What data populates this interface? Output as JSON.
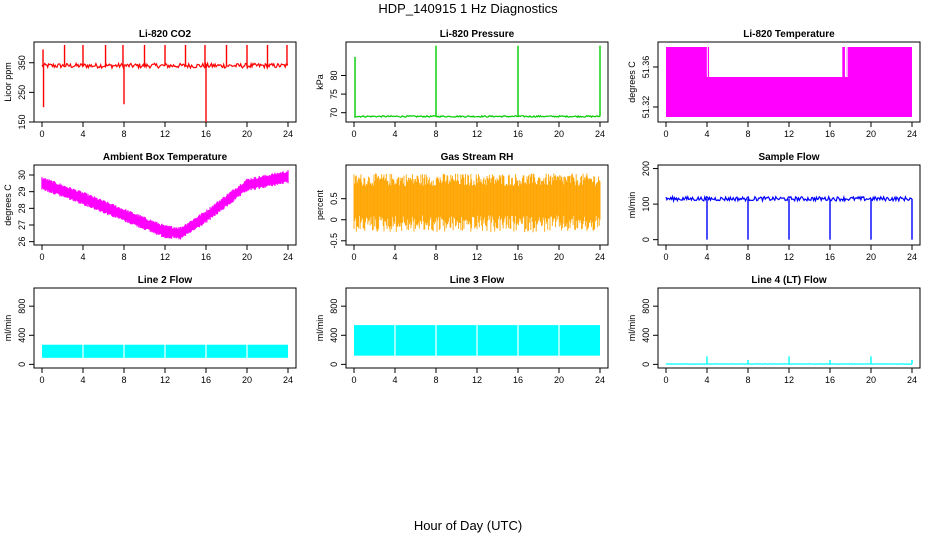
{
  "title": "HDP_140915  1 Hz Diagnostics",
  "xlabel": "Hour of Day (UTC)",
  "chart_data": [
    {
      "type": "line",
      "title": "Li-820 CO2",
      "ylabel": "Licor ppm",
      "color": "#ff0000",
      "xlim": [
        0,
        24
      ],
      "xticks": [
        0,
        4,
        8,
        12,
        16,
        20,
        24
      ],
      "ylim": [
        150,
        420
      ],
      "yticks": [
        150,
        250,
        350
      ],
      "baseline": 340,
      "noise": 8,
      "spikes": [
        {
          "x": 0.1,
          "y": 395
        },
        {
          "x": 0.15,
          "y": 200
        },
        {
          "x": 2.2,
          "y": 410
        },
        {
          "x": 4.0,
          "y": 410
        },
        {
          "x": 6.2,
          "y": 410
        },
        {
          "x": 7.9,
          "y": 410
        },
        {
          "x": 8.0,
          "y": 210
        },
        {
          "x": 10.0,
          "y": 410
        },
        {
          "x": 12.0,
          "y": 410
        },
        {
          "x": 14.0,
          "y": 410
        },
        {
          "x": 15.9,
          "y": 410
        },
        {
          "x": 16.0,
          "y": 150
        },
        {
          "x": 18.0,
          "y": 410
        },
        {
          "x": 20.0,
          "y": 410
        },
        {
          "x": 22.0,
          "y": 410
        },
        {
          "x": 23.9,
          "y": 410
        }
      ]
    },
    {
      "type": "line",
      "title": "Li-820 Pressure",
      "ylabel": "kPa",
      "color": "#00cc00",
      "xlim": [
        0,
        24
      ],
      "xticks": [
        0,
        4,
        8,
        12,
        16,
        20,
        24
      ],
      "ylim": [
        67.5,
        89
      ],
      "yticks": [
        70,
        75,
        80
      ],
      "baseline": 69,
      "noise": 0.2,
      "spikes": [
        {
          "x": 0.1,
          "y": 85
        },
        {
          "x": 8.0,
          "y": 88
        },
        {
          "x": 16.0,
          "y": 88
        },
        {
          "x": 24.0,
          "y": 88
        }
      ]
    },
    {
      "type": "band",
      "title": "Li-820 Temperature",
      "ylabel": "degrees C",
      "color": "#ff00ff",
      "xlim": [
        0,
        24
      ],
      "xticks": [
        0,
        4,
        8,
        12,
        16,
        20,
        24
      ],
      "ylim": [
        51.305,
        51.385
      ],
      "yticks": [
        51.32,
        51.36
      ],
      "low": 51.31,
      "high": 51.38,
      "mid": 51.35
    },
    {
      "type": "band",
      "title": "Ambient Box Temperature",
      "ylabel": "degrees C",
      "color": "#ff00ff",
      "xlim": [
        0,
        24
      ],
      "xticks": [
        0,
        4,
        8,
        12,
        16,
        20,
        24
      ],
      "ylim": [
        25.8,
        30.6
      ],
      "yticks": [
        26,
        27,
        28,
        29,
        30
      ],
      "x": [
        0,
        4,
        8,
        12,
        13.5,
        16,
        20,
        24
      ],
      "y": [
        29.5,
        28.6,
        27.6,
        26.6,
        26.5,
        27.5,
        29.4,
        29.9
      ],
      "width": 0.8
    },
    {
      "type": "band",
      "title": "Gas Stream RH",
      "ylabel": "percent",
      "color": "#ffa500",
      "xlim": [
        0,
        24
      ],
      "xticks": [
        0,
        4,
        8,
        12,
        16,
        20,
        24
      ],
      "ylim": [
        -0.6,
        1.3
      ],
      "yticks": [
        -0.5,
        0.0,
        0.5
      ],
      "low": -0.3,
      "high": 1.1,
      "mid": 0.5
    },
    {
      "type": "line",
      "title": "Sample Flow",
      "ylabel": "ml/min",
      "color": "#0000ff",
      "xlim": [
        0,
        24
      ],
      "xticks": [
        0,
        4,
        8,
        12,
        16,
        20,
        24
      ],
      "ylim": [
        -15,
        210
      ],
      "yticks": [
        0,
        100,
        200
      ],
      "baseline": 115,
      "noise": 6,
      "spikes": [
        {
          "x": 4.0,
          "y": 0
        },
        {
          "x": 8.0,
          "y": 0
        },
        {
          "x": 12.0,
          "y": 0
        },
        {
          "x": 16.0,
          "y": 0
        },
        {
          "x": 20.0,
          "y": 0
        },
        {
          "x": 24.0,
          "y": 0
        }
      ]
    },
    {
      "type": "band",
      "title": "Line 2 Flow",
      "ylabel": "ml/min",
      "color": "#00ffff",
      "xlim": [
        0,
        24
      ],
      "xticks": [
        0,
        4,
        8,
        12,
        16,
        20,
        24
      ],
      "ylim": [
        -50,
        1050
      ],
      "yticks": [
        0,
        400,
        800
      ],
      "low": 90,
      "high": 270,
      "gaps": [
        4,
        8,
        12,
        16,
        20
      ]
    },
    {
      "type": "band",
      "title": "Line 3 Flow",
      "ylabel": "ml/min",
      "color": "#00ffff",
      "xlim": [
        0,
        24
      ],
      "xticks": [
        0,
        4,
        8,
        12,
        16,
        20,
        24
      ],
      "ylim": [
        -50,
        1050
      ],
      "yticks": [
        0,
        400,
        800
      ],
      "low": 120,
      "high": 540,
      "gaps": [
        4,
        8,
        12,
        16,
        20
      ]
    },
    {
      "type": "line",
      "title": "Line 4 (LT) Flow",
      "ylabel": "ml/min",
      "color": "#00ffff",
      "xlim": [
        0,
        24
      ],
      "xticks": [
        0,
        4,
        8,
        12,
        16,
        20,
        24
      ],
      "ylim": [
        -50,
        1050
      ],
      "yticks": [
        0,
        400,
        800
      ],
      "baseline": 5,
      "noise": 2,
      "spikes": [
        {
          "x": 4.0,
          "y": 110
        },
        {
          "x": 8.0,
          "y": 60
        },
        {
          "x": 12.0,
          "y": 110
        },
        {
          "x": 16.0,
          "y": 60
        },
        {
          "x": 20.0,
          "y": 110
        },
        {
          "x": 24.0,
          "y": 60
        }
      ]
    }
  ]
}
